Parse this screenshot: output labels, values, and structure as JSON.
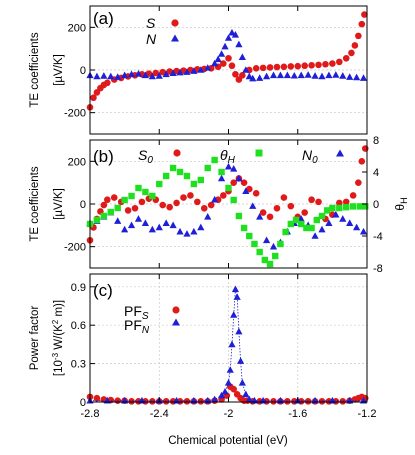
{
  "chart_data": [
    {
      "type": "scatter",
      "panel_label": "(a)",
      "ylabel": "TE coefficients",
      "ylabel_units": "[µV/K]",
      "xlim": [
        -2.8,
        -1.2
      ],
      "ylim": [
        -300,
        300
      ],
      "y_ticks": [
        -200,
        0,
        200
      ],
      "y_tick_labels": [
        "-200",
        "0",
        "200"
      ],
      "grid": true,
      "legend_position": "top-center",
      "series": [
        {
          "name": "S",
          "marker": "circle",
          "color": "#e01a1a",
          "x": [
            -2.8,
            -2.78,
            -2.76,
            -2.74,
            -2.72,
            -2.7,
            -2.66,
            -2.62,
            -2.58,
            -2.54,
            -2.5,
            -2.46,
            -2.42,
            -2.38,
            -2.34,
            -2.3,
            -2.26,
            -2.22,
            -2.18,
            -2.14,
            -2.1,
            -2.06,
            -2.03,
            -2.0,
            -1.98,
            -1.96,
            -1.94,
            -1.92,
            -1.88,
            -1.84,
            -1.8,
            -1.76,
            -1.72,
            -1.68,
            -1.64,
            -1.6,
            -1.56,
            -1.52,
            -1.48,
            -1.44,
            -1.4,
            -1.36,
            -1.32,
            -1.29,
            -1.27,
            -1.25,
            -1.23,
            -1.215
          ],
          "y": [
            -175,
            -130,
            -105,
            -85,
            -70,
            -60,
            -45,
            -37,
            -30,
            -25,
            -20,
            -17,
            -14,
            -10,
            -7,
            -5,
            -3,
            0,
            3,
            5,
            8,
            15,
            30,
            55,
            20,
            -20,
            -45,
            -25,
            0,
            8,
            10,
            12,
            14,
            15,
            17,
            18,
            20,
            22,
            24,
            27,
            30,
            38,
            55,
            80,
            115,
            160,
            215,
            260
          ]
        },
        {
          "name": "N",
          "marker": "triangle",
          "color": "#1f1fd8",
          "x": [
            -2.8,
            -2.76,
            -2.72,
            -2.68,
            -2.64,
            -2.6,
            -2.56,
            -2.52,
            -2.48,
            -2.44,
            -2.4,
            -2.36,
            -2.32,
            -2.28,
            -2.24,
            -2.2,
            -2.16,
            -2.12,
            -2.08,
            -2.06,
            -2.04,
            -2.02,
            -2.0,
            -1.98,
            -1.96,
            -1.94,
            -1.92,
            -1.9,
            -1.88,
            -1.86,
            -1.82,
            -1.78,
            -1.74,
            -1.7,
            -1.66,
            -1.62,
            -1.58,
            -1.54,
            -1.5,
            -1.46,
            -1.42,
            -1.38,
            -1.34,
            -1.3,
            -1.26,
            -1.22
          ],
          "y": [
            -25,
            -30,
            -28,
            -30,
            -33,
            -25,
            -20,
            -18,
            -25,
            -30,
            -28,
            -20,
            -15,
            -12,
            -10,
            -5,
            0,
            10,
            30,
            50,
            75,
            110,
            150,
            175,
            165,
            120,
            60,
            0,
            -30,
            -40,
            -38,
            -30,
            -25,
            -25,
            -25,
            -27,
            -25,
            -23,
            -28,
            -30,
            -25,
            -23,
            -28,
            -33,
            -35,
            -38
          ]
        }
      ]
    },
    {
      "type": "scatter",
      "panel_label": "(b)",
      "ylabel": "TE coefficients",
      "ylabel_units": "[µV/K]",
      "y2label": "θH",
      "xlim": [
        -2.8,
        -1.2
      ],
      "ylim": [
        -300,
        300
      ],
      "y2lim": [
        -8,
        8
      ],
      "y_ticks": [
        -200,
        0,
        200
      ],
      "y_tick_labels": [
        "-200",
        "0",
        "200"
      ],
      "y2_ticks": [
        -8,
        -4,
        0,
        4,
        8
      ],
      "y2_tick_labels": [
        "-8",
        "-4",
        "0",
        "4",
        "8"
      ],
      "grid": true,
      "legend_position": "top",
      "series": [
        {
          "name": "S0",
          "marker": "circle",
          "color": "#e01a1a",
          "axis": "left",
          "x": [
            -2.8,
            -2.78,
            -2.76,
            -2.74,
            -2.72,
            -2.7,
            -2.66,
            -2.62,
            -2.58,
            -2.54,
            -2.5,
            -2.46,
            -2.42,
            -2.38,
            -2.34,
            -2.3,
            -2.26,
            -2.22,
            -2.18,
            -2.14,
            -2.1,
            -2.06,
            -2.03,
            -2.0,
            -1.97,
            -1.94,
            -1.91,
            -1.88,
            -1.84,
            -1.8,
            -1.76,
            -1.72,
            -1.68,
            -1.64,
            -1.6,
            -1.56,
            -1.52,
            -1.48,
            -1.44,
            -1.4,
            -1.36,
            -1.32,
            -1.28,
            -1.25,
            -1.23,
            -1.21
          ],
          "y": [
            -170,
            -110,
            -70,
            -35,
            -5,
            20,
            30,
            10,
            -30,
            -20,
            10,
            25,
            20,
            -5,
            -15,
            5,
            30,
            40,
            10,
            -20,
            -5,
            20,
            40,
            60,
            100,
            120,
            100,
            70,
            50,
            -40,
            -60,
            -20,
            30,
            -10,
            -60,
            -40,
            20,
            10,
            -70,
            -50,
            5,
            10,
            40,
            100,
            200,
            260
          ]
        },
        {
          "name": "N0",
          "marker": "triangle",
          "color": "#1f1fd8",
          "axis": "left",
          "x": [
            -2.8,
            -2.76,
            -2.72,
            -2.68,
            -2.64,
            -2.6,
            -2.56,
            -2.52,
            -2.48,
            -2.44,
            -2.4,
            -2.36,
            -2.32,
            -2.28,
            -2.24,
            -2.2,
            -2.16,
            -2.12,
            -2.08,
            -2.04,
            -2.0,
            -1.97,
            -1.94,
            -1.9,
            -1.86,
            -1.82,
            -1.78,
            -1.74,
            -1.7,
            -1.66,
            -1.62,
            -1.58,
            -1.54,
            -1.5,
            -1.46,
            -1.42,
            -1.38,
            -1.34,
            -1.3,
            -1.26,
            -1.22
          ],
          "y": [
            -90,
            -80,
            -60,
            -40,
            -80,
            -120,
            -100,
            -70,
            -90,
            -120,
            -110,
            -90,
            -100,
            -130,
            -140,
            -130,
            -110,
            -60,
            20,
            120,
            175,
            165,
            120,
            60,
            -10,
            -60,
            -170,
            -200,
            -180,
            -130,
            -90,
            -70,
            -100,
            -150,
            -120,
            -90,
            -50,
            -70,
            -90,
            -110,
            -130
          ]
        },
        {
          "name": "θH",
          "marker": "square",
          "color": "#1ee01e",
          "axis": "right",
          "x": [
            -2.8,
            -2.76,
            -2.72,
            -2.68,
            -2.64,
            -2.6,
            -2.56,
            -2.52,
            -2.48,
            -2.44,
            -2.4,
            -2.36,
            -2.32,
            -2.28,
            -2.24,
            -2.2,
            -2.16,
            -2.12,
            -2.08,
            -2.04,
            -2.0,
            -1.97,
            -1.94,
            -1.91,
            -1.88,
            -1.85,
            -1.82,
            -1.79,
            -1.76,
            -1.73,
            -1.7,
            -1.67,
            -1.64,
            -1.61,
            -1.58,
            -1.55,
            -1.52,
            -1.49,
            -1.46,
            -1.43,
            -1.4,
            -1.36,
            -1.32,
            -1.28,
            -1.24,
            -1.21
          ],
          "y": [
            -2.5,
            -2.0,
            -1.5,
            -1.0,
            -0.5,
            0.5,
            1.0,
            2.0,
            1.5,
            1.0,
            2.5,
            3.5,
            4.5,
            4.0,
            3.5,
            2.5,
            3.0,
            4.5,
            5.5,
            4.0,
            2.0,
            0.5,
            -1.5,
            -3.0,
            -4.0,
            -5.0,
            -6.0,
            -7.0,
            -7.5,
            -6.5,
            -5.0,
            -3.5,
            -2.5,
            -2.0,
            -2.5,
            -3.0,
            -3.0,
            -2.0,
            -1.5,
            -0.8,
            -0.5,
            -0.5,
            -0.4,
            -0.3,
            -0.3,
            -0.3
          ]
        }
      ]
    },
    {
      "type": "scatter",
      "panel_label": "(c)",
      "ylabel": "Power factor",
      "ylabel_units_parts": [
        "[10",
        "-3",
        " W/(K",
        "2",
        " m)]"
      ],
      "xlabel": "Chemical potential (eV)",
      "xlim": [
        -2.8,
        -1.2
      ],
      "ylim": [
        0,
        1.0
      ],
      "y_ticks": [
        0,
        0.3,
        0.6,
        0.9
      ],
      "y_tick_labels": [
        "0",
        "0.3",
        "0.6",
        "0.9"
      ],
      "x_ticks": [
        -2.8,
        -2.4,
        -2.0,
        -1.6,
        -1.2
      ],
      "x_tick_labels": [
        "-2.8",
        "-2.4",
        "-2",
        "-1.6",
        "-1.2"
      ],
      "grid": true,
      "legend_position": "top-left",
      "series": [
        {
          "name": "PF_S",
          "label_main": "PF",
          "label_sub": "S",
          "marker": "circle",
          "color": "#e01a1a",
          "x": [
            -2.8,
            -2.76,
            -2.72,
            -2.68,
            -2.64,
            -2.6,
            -2.56,
            -2.52,
            -2.48,
            -2.44,
            -2.4,
            -2.36,
            -2.32,
            -2.28,
            -2.24,
            -2.2,
            -2.16,
            -2.12,
            -2.08,
            -2.04,
            -2.01,
            -1.99,
            -1.97,
            -1.95,
            -1.93,
            -1.91,
            -1.89,
            -1.86,
            -1.82,
            -1.78,
            -1.74,
            -1.7,
            -1.66,
            -1.62,
            -1.58,
            -1.54,
            -1.5,
            -1.46,
            -1.42,
            -1.38,
            -1.34,
            -1.3,
            -1.27,
            -1.25,
            -1.23,
            -1.21
          ],
          "y": [
            0.04,
            0.03,
            0.02,
            0.015,
            0.01,
            0.01,
            0.005,
            0.005,
            0.005,
            0.005,
            0.005,
            0.005,
            0.005,
            0.005,
            0.005,
            0.005,
            0.005,
            0.005,
            0.01,
            0.02,
            0.05,
            0.12,
            0.1,
            0.06,
            0.03,
            0.01,
            0.01,
            0.005,
            0.005,
            0.005,
            0.005,
            0.005,
            0.005,
            0.005,
            0.005,
            0.005,
            0.005,
            0.005,
            0.005,
            0.005,
            0.005,
            0.01,
            0.02,
            0.03,
            0.04,
            0.03
          ]
        },
        {
          "name": "PF_N",
          "label_main": "PF",
          "label_sub": "N",
          "marker": "triangle",
          "color": "#1f1fd8",
          "line": "dotted",
          "x": [
            -2.8,
            -2.7,
            -2.6,
            -2.5,
            -2.4,
            -2.3,
            -2.2,
            -2.12,
            -2.08,
            -2.04,
            -2.02,
            -2.0,
            -1.99,
            -1.98,
            -1.97,
            -1.96,
            -1.95,
            -1.94,
            -1.93,
            -1.92,
            -1.9,
            -1.88,
            -1.85,
            -1.8,
            -1.7,
            -1.6,
            -1.5,
            -1.4,
            -1.3,
            -1.22
          ],
          "y": [
            0.01,
            0.01,
            0.01,
            0.01,
            0.01,
            0.01,
            0.01,
            0.01,
            0.02,
            0.05,
            0.08,
            0.15,
            0.25,
            0.45,
            0.68,
            0.88,
            0.82,
            0.55,
            0.32,
            0.15,
            0.06,
            0.02,
            0.01,
            0.01,
            0.01,
            0.01,
            0.01,
            0.01,
            0.01,
            0.01
          ]
        }
      ]
    }
  ]
}
